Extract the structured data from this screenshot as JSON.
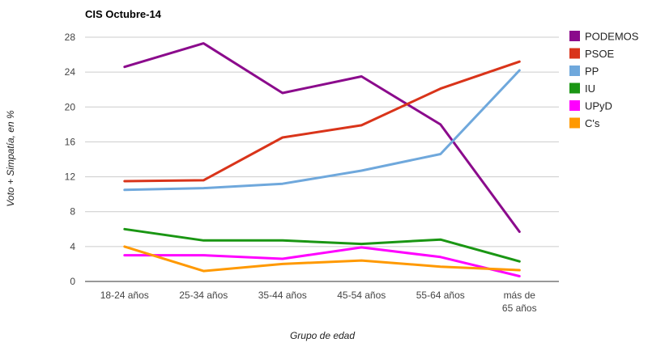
{
  "chart_data": {
    "type": "line",
    "title": "CIS Octubre-14",
    "xlabel": "Grupo de edad",
    "ylabel": "Voto + Simpatía, en %",
    "categories": [
      "18-24 años",
      "25-34 años",
      "35-44 años",
      "45-54 años",
      "55-64 años",
      "más de 65 años"
    ],
    "category_lines": [
      [
        "18-24 años"
      ],
      [
        "25-34 años"
      ],
      [
        "35-44 años"
      ],
      [
        "45-54 años"
      ],
      [
        "55-64 años"
      ],
      [
        "más de",
        "65 años"
      ]
    ],
    "ylim": [
      0,
      28
    ],
    "yticks": [
      0,
      4,
      8,
      12,
      16,
      20,
      24,
      28
    ],
    "grid": true,
    "legend": "right",
    "series": [
      {
        "name": "PODEMOS",
        "color": "#8B0B8C",
        "values": [
          24.6,
          27.3,
          21.6,
          23.5,
          18.0,
          5.7
        ]
      },
      {
        "name": "PSOE",
        "color": "#D9341A",
        "values": [
          11.5,
          11.6,
          16.5,
          17.9,
          22.1,
          25.2
        ]
      },
      {
        "name": "PP",
        "color": "#6FA8DC",
        "values": [
          10.5,
          10.7,
          11.2,
          12.7,
          14.6,
          24.2
        ]
      },
      {
        "name": "IU",
        "color": "#1A9613",
        "values": [
          6.0,
          4.7,
          4.7,
          4.3,
          4.8,
          2.3
        ]
      },
      {
        "name": "UPyD",
        "color": "#FF00FF",
        "values": [
          3.0,
          3.0,
          2.6,
          3.9,
          2.8,
          0.6
        ]
      },
      {
        "name": "C's",
        "color": "#FF9900",
        "values": [
          4.0,
          1.2,
          2.0,
          2.4,
          1.7,
          1.3
        ]
      }
    ]
  }
}
